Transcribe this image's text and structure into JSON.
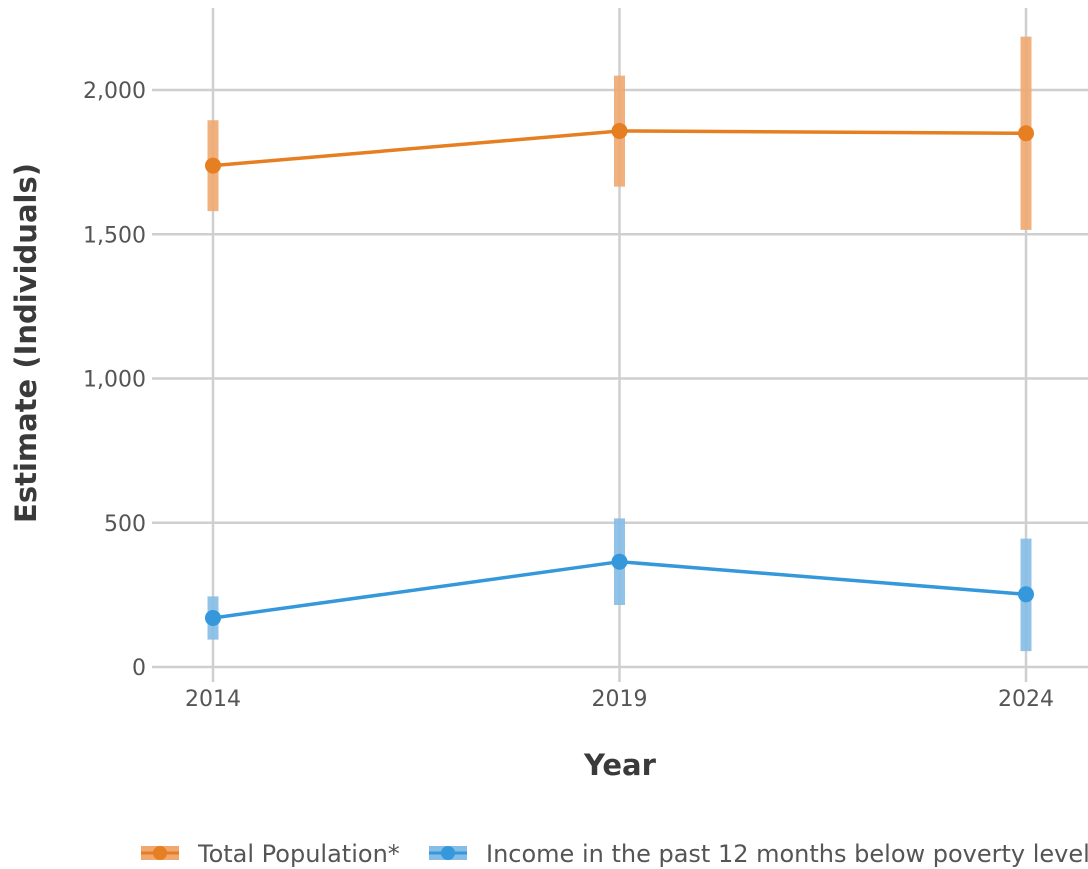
{
  "chart_data": {
    "type": "line",
    "title": "",
    "xlabel": "Year",
    "ylabel": "Estimate (Individuals)",
    "x": [
      2014,
      2019,
      2024
    ],
    "x_tick_labels": [
      "2014",
      "2019",
      "2024"
    ],
    "y_ticks": [
      0,
      500,
      1000,
      1500,
      2000
    ],
    "y_tick_labels": [
      "0",
      "500",
      "1,000",
      "1,500",
      "2,000"
    ],
    "ylim": [
      -50,
      2280
    ],
    "xlim": [
      2013.3,
      2024.75
    ],
    "grid": true,
    "legend_position": "bottom",
    "series": [
      {
        "name": "Total Population*",
        "color": "#e67e22",
        "band_color": "#f0a870",
        "values": [
          1738,
          1858,
          1850
        ],
        "lower": [
          1580,
          1665,
          1515
        ],
        "upper": [
          1895,
          2050,
          2185
        ]
      },
      {
        "name": "Income in the past 12 months below poverty level",
        "color": "#3498db",
        "band_color": "#85bde6",
        "values": [
          170,
          365,
          252
        ],
        "lower": [
          95,
          215,
          55
        ],
        "upper": [
          245,
          515,
          445
        ]
      }
    ]
  }
}
